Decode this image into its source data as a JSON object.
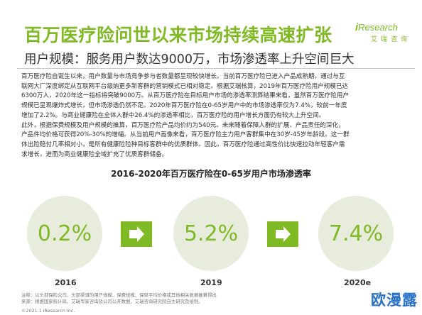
{
  "header": {
    "title": "百万医疗险问世以来市场持续高速扩张",
    "brand_name": "Research",
    "brand_sub": "艾瑞咨询"
  },
  "subtitle": "用户规模：服务用户数达9000万，市场渗透率上升空间巨大",
  "body": {
    "lines": [
      "百万医疗险自诞生以来，用户数量与市场竞争参与者数量都呈现较快增长。当前百万医疗险已进入产品成熟期，通过与互",
      "联网大厂深度绑定从互联网平台级纳更多新客群的营销模式已相对稳定。根据艾瑞核算，2019年百万医疗险用户规模已达",
      "6300万人，2020年这一指标将突破9000万。从百万医疗险在目标用户市场的渗透率测算结果来看，虽然百万医疗险用户",
      "规模已呈现爆炸式增长，但市场渗透仍然不足。2020年百万医疗险在0-65岁用户中的市场渗透率仅为7.4%，较前一年度",
      "增加了2.2%。与商业健康险在全体人群中26.4%的渗透率相比，百万医疗险的用户增长方面仍有较大上升空间。",
      "此外，根据保费规模及用户规模的推算，百万医疗险产品均价约为540元。未来随着保障人群的扩展、产品责任的深化，",
      "产品件均价格可获得20%-30%的增幅。从当前用户画像来看，百万医疗险主力用户客群集中在30岁-45岁年龄段。这一群",
      "体出险赔付几率相对小，是所有健康险险种目标客群中的优质群体。因此，百万医疗险通过高性价比快速拉动年轻客户需",
      "求增长，进而为商业健康险全域扩充了优质客群储备。"
    ]
  },
  "chart_data": {
    "type": "bar",
    "title": "2016-2020年百万医疗险在0-65岁用户市场渗透率",
    "categories": [
      "2016",
      "2019",
      "2020e"
    ],
    "values": [
      0.2,
      5.2,
      7.4
    ],
    "value_labels": [
      "0.2%",
      "5.2%",
      "7.4%"
    ],
    "xlabel": "",
    "ylabel": ""
  },
  "notes": {
    "line1": "注释：以头部保险公司、头部渠道的用户规模、保费规模、保单平均价格或其他相关数据推算得出",
    "line2": "来源：根据国家统计局、艾瑞专家咨询及公司公开数据，艾瑞咨询研究院自主研究及绘制。",
    "copyright": "©2021.1 iResearch Inc."
  },
  "watermark": "欧漫露",
  "colors": {
    "accent": "#7fba24",
    "circle_fill": "#e8ecdd",
    "watermark": "#2a72c8"
  }
}
